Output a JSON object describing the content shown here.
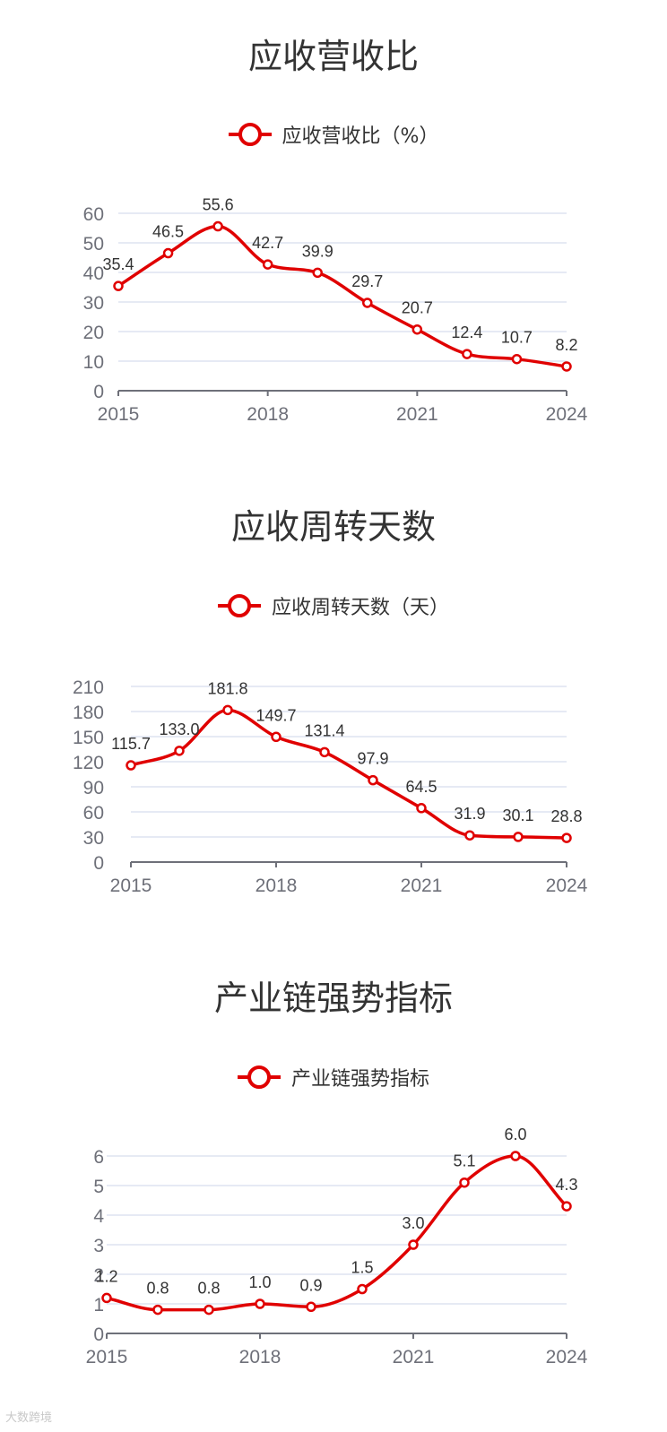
{
  "colors": {
    "line": "#e00000",
    "grid": "#dde3f0",
    "axis": "#6e7079",
    "text": "#333333"
  },
  "chart_data": [
    {
      "type": "line",
      "title": "应收营收比",
      "legend": "应收营收比（%）",
      "x": [
        "2015",
        "2016",
        "2017",
        "2018",
        "2019",
        "2020",
        "2021",
        "2022",
        "2023",
        "2024"
      ],
      "x_tick_labels": [
        "2015",
        "2018",
        "2021",
        "2024"
      ],
      "series": [
        {
          "name": "应收营收比（%）",
          "values": [
            35.4,
            46.5,
            55.6,
            42.7,
            39.9,
            29.7,
            20.7,
            12.4,
            10.7,
            8.2
          ]
        }
      ],
      "ylim": [
        0,
        60
      ],
      "y_ticks": [
        0,
        10,
        20,
        30,
        40,
        50,
        60
      ],
      "grid": true,
      "legend_position": "top-center"
    },
    {
      "type": "line",
      "title": "应收周转天数",
      "legend": "应收周转天数（天）",
      "x": [
        "2015",
        "2016",
        "2017",
        "2018",
        "2019",
        "2020",
        "2021",
        "2022",
        "2023",
        "2024"
      ],
      "x_tick_labels": [
        "2015",
        "2018",
        "2021",
        "2024"
      ],
      "series": [
        {
          "name": "应收周转天数（天）",
          "values": [
            115.7,
            133.0,
            181.8,
            149.7,
            131.4,
            97.9,
            64.5,
            31.9,
            30.1,
            28.8
          ]
        }
      ],
      "ylim": [
        0,
        210
      ],
      "y_ticks": [
        0,
        30,
        60,
        90,
        120,
        150,
        180,
        210
      ],
      "grid": true,
      "legend_position": "top-center"
    },
    {
      "type": "line",
      "title": "产业链强势指标",
      "legend": "产业链强势指标",
      "x": [
        "2015",
        "2016",
        "2017",
        "2018",
        "2019",
        "2020",
        "2021",
        "2022",
        "2023",
        "2024"
      ],
      "x_tick_labels": [
        "2015",
        "2018",
        "2021",
        "2024"
      ],
      "series": [
        {
          "name": "产业链强势指标",
          "values": [
            1.2,
            0.8,
            0.8,
            1.0,
            0.9,
            1.5,
            3.0,
            5.1,
            6.0,
            4.3
          ]
        }
      ],
      "ylim": [
        0,
        6
      ],
      "y_ticks": [
        0,
        1,
        2,
        3,
        4,
        5,
        6
      ],
      "grid": true,
      "legend_position": "top-center"
    }
  ],
  "watermark": "大数跨境"
}
